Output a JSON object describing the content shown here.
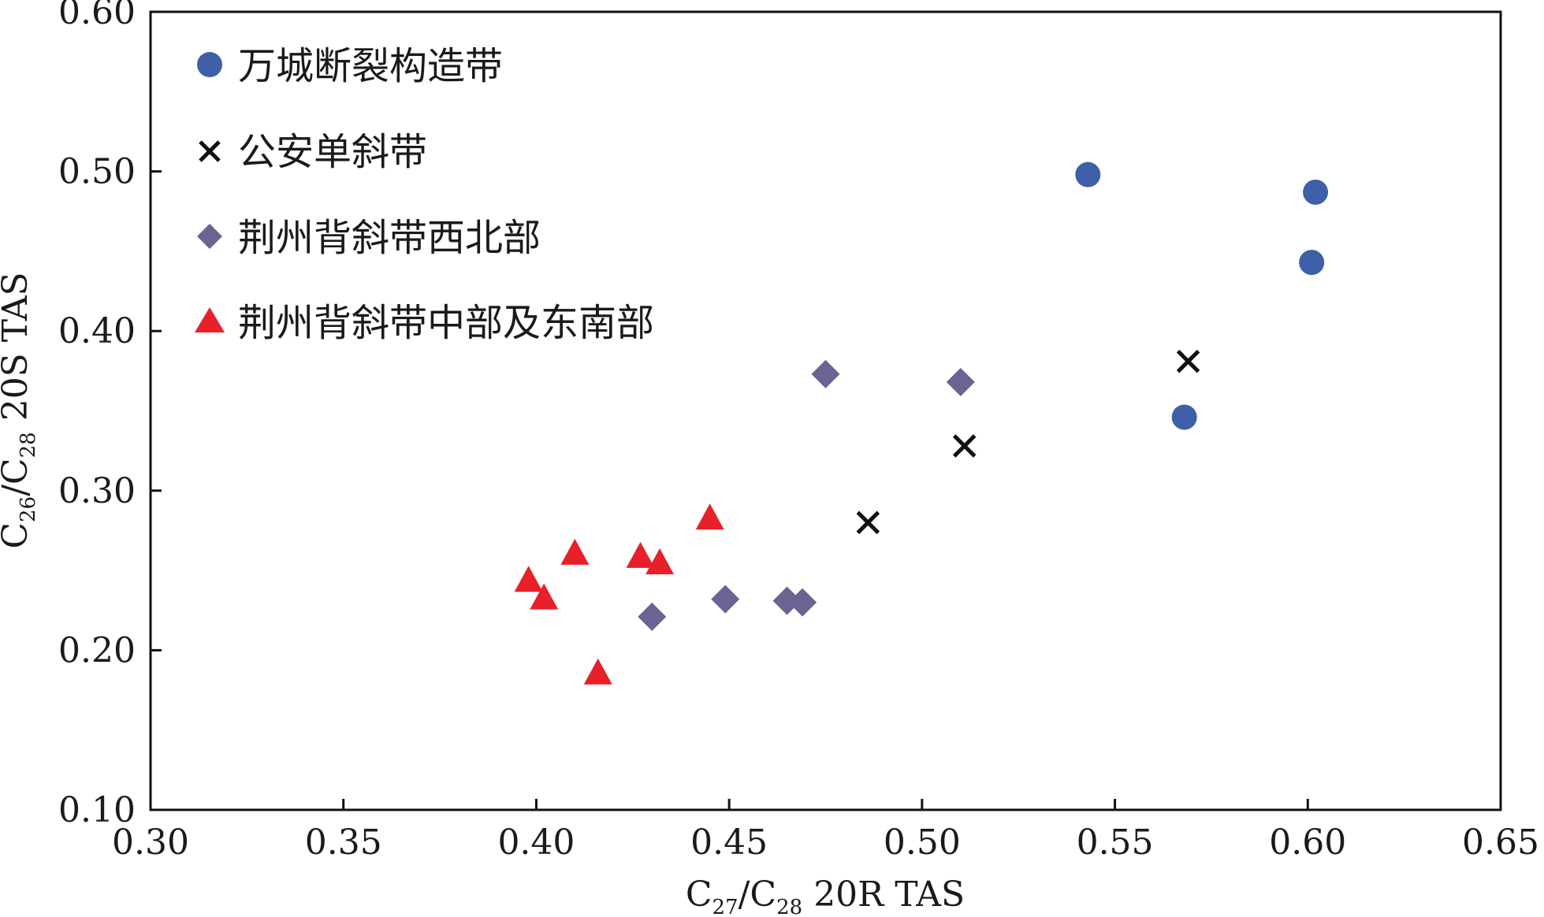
{
  "chart_data": {
    "type": "scatter",
    "xlim": [
      0.3,
      0.65
    ],
    "ylim": [
      0.1,
      0.6
    ],
    "xticks": [
      0.3,
      0.35,
      0.4,
      0.45,
      0.5,
      0.55,
      0.6,
      0.65
    ],
    "yticks": [
      0.1,
      0.2,
      0.3,
      0.4,
      0.5,
      0.6
    ],
    "xtick_labels": [
      "0.30",
      "0.35",
      "0.40",
      "0.45",
      "0.50",
      "0.55",
      "0.60",
      "0.65"
    ],
    "ytick_labels": [
      "0.10",
      "0.20",
      "0.30",
      "0.40",
      "0.50",
      "0.60"
    ],
    "xlabel": {
      "p1": "C",
      "s1": "27",
      "p2": "/C",
      "s2": "28",
      "p3": " 20R TAS"
    },
    "ylabel": {
      "p1": "C",
      "s1": "26",
      "p2": "/C",
      "s2": "28",
      "p3": " 20S TAS"
    },
    "grid": false,
    "legend_position": "top-left",
    "series": [
      {
        "name": "万城断裂构造带",
        "marker": "circle",
        "color": "#3f5fa8",
        "points": [
          [
            0.543,
            0.498
          ],
          [
            0.602,
            0.487
          ],
          [
            0.601,
            0.443
          ],
          [
            0.568,
            0.346
          ]
        ]
      },
      {
        "name": "公安单斜带",
        "marker": "x",
        "color": "#111111",
        "points": [
          [
            0.569,
            0.381
          ],
          [
            0.511,
            0.328
          ],
          [
            0.486,
            0.28
          ]
        ]
      },
      {
        "name": "荆州背斜带西北部",
        "marker": "diamond",
        "color": "#6b6391",
        "points": [
          [
            0.475,
            0.373
          ],
          [
            0.51,
            0.368
          ],
          [
            0.43,
            0.221
          ],
          [
            0.449,
            0.232
          ],
          [
            0.465,
            0.231
          ],
          [
            0.469,
            0.23
          ]
        ]
      },
      {
        "name": "荆州背斜带中部及东南部",
        "marker": "triangle",
        "color": "#e8202a",
        "points": [
          [
            0.398,
            0.243
          ],
          [
            0.402,
            0.232
          ],
          [
            0.41,
            0.26
          ],
          [
            0.427,
            0.258
          ],
          [
            0.432,
            0.254
          ],
          [
            0.445,
            0.282
          ],
          [
            0.416,
            0.185
          ]
        ]
      }
    ]
  }
}
